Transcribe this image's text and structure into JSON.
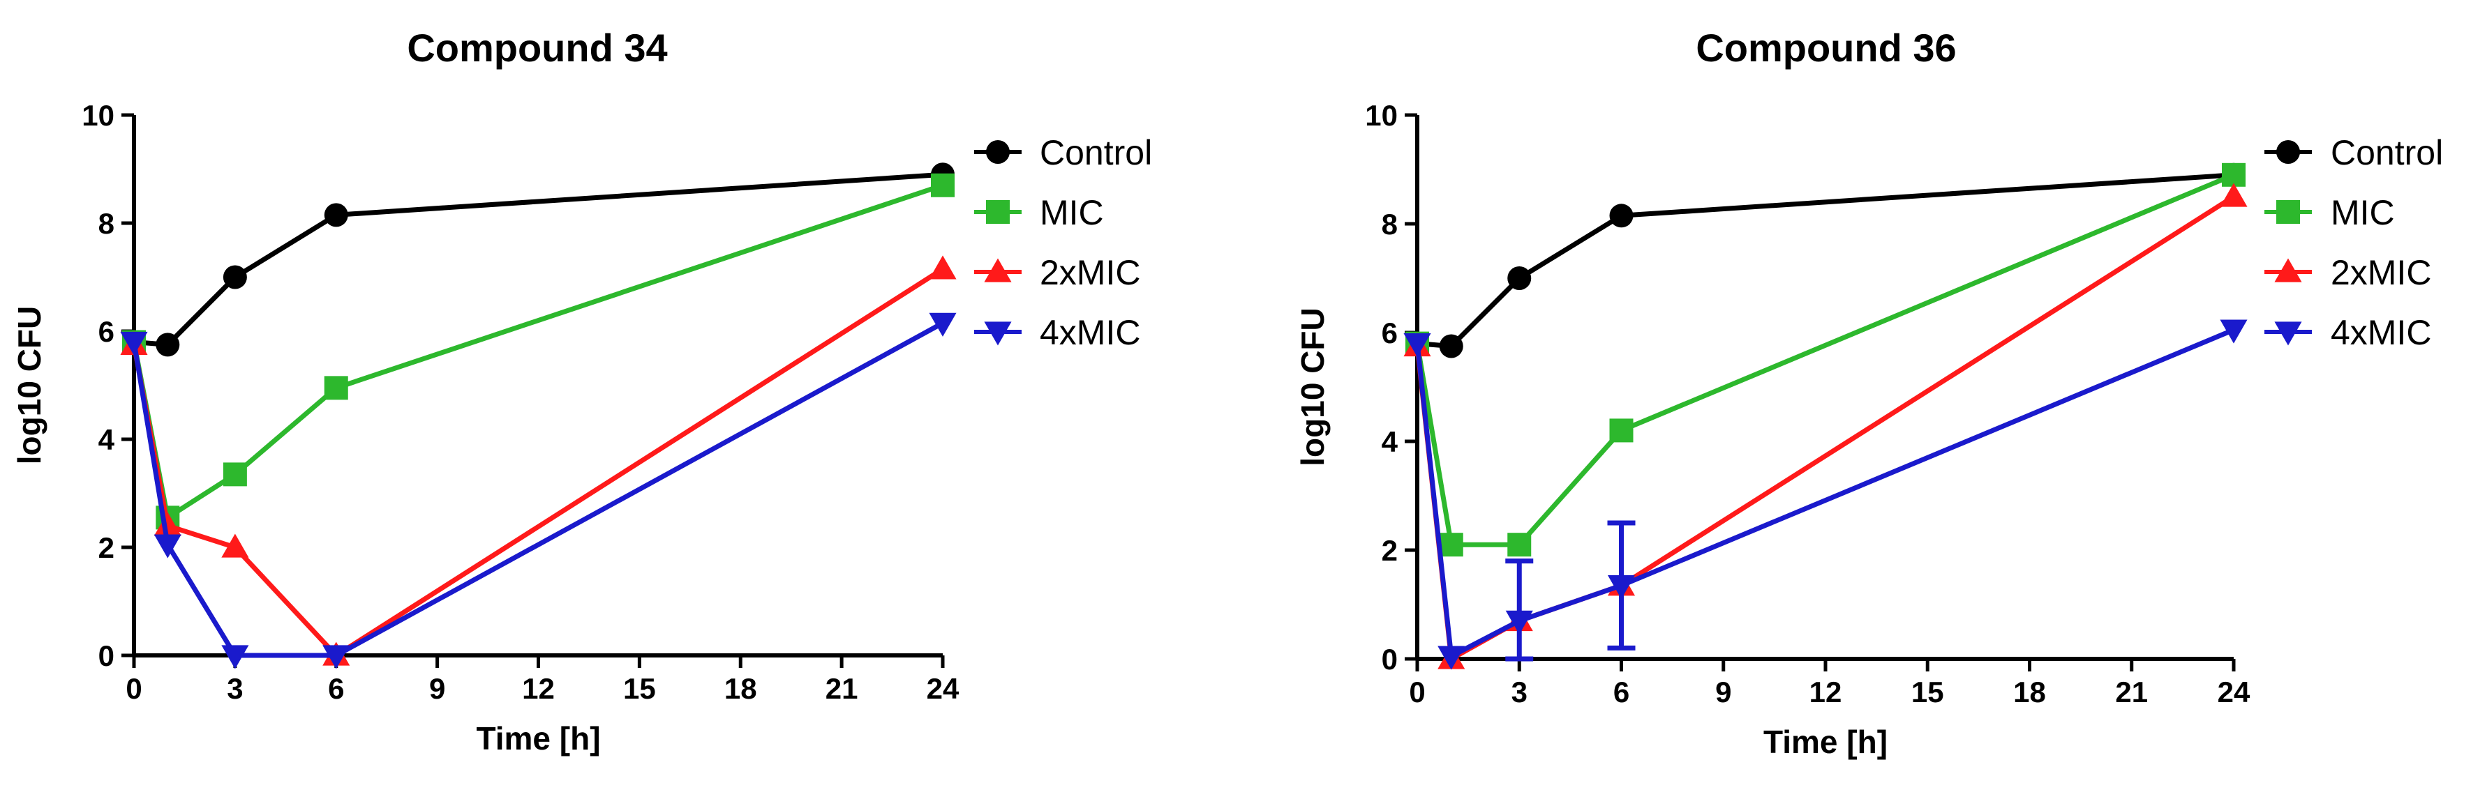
{
  "chart_data": [
    {
      "type": "line",
      "title": "Compound 34",
      "xlabel": "Time [h]",
      "ylabel": "log10 CFU",
      "xlim": [
        0,
        24
      ],
      "ylim": [
        0,
        10
      ],
      "xticks": [
        0,
        3,
        6,
        9,
        12,
        15,
        18,
        21,
        24
      ],
      "yticks": [
        0,
        2,
        4,
        6,
        8,
        10
      ],
      "grid": false,
      "legend_position": "right",
      "series": [
        {
          "name": "Control",
          "color": "#000000",
          "marker": "circle",
          "x": [
            0,
            1,
            3,
            6,
            24
          ],
          "y": [
            5.8,
            5.75,
            7.0,
            8.15,
            8.9
          ]
        },
        {
          "name": "MIC",
          "color": "#2db82d",
          "marker": "square",
          "x": [
            0,
            1,
            3,
            6,
            24
          ],
          "y": [
            5.8,
            2.55,
            3.35,
            4.95,
            8.7
          ]
        },
        {
          "name": "2xMIC",
          "color": "#ff1a1a",
          "marker": "triangle-up",
          "x": [
            0,
            1,
            3,
            6,
            24
          ],
          "y": [
            5.75,
            2.4,
            2.0,
            0.0,
            7.15
          ]
        },
        {
          "name": "4xMIC",
          "color": "#1a1acc",
          "marker": "triangle-down",
          "x": [
            0,
            1,
            3,
            6,
            24
          ],
          "y": [
            5.8,
            2.05,
            0.0,
            0.0,
            6.15
          ]
        }
      ]
    },
    {
      "type": "line",
      "title": "Compound 36",
      "xlabel": "Time [h]",
      "ylabel": "log10 CFU",
      "xlim": [
        0,
        24
      ],
      "ylim": [
        0,
        10
      ],
      "xticks": [
        0,
        3,
        6,
        9,
        12,
        15,
        18,
        21,
        24
      ],
      "yticks": [
        0,
        2,
        4,
        6,
        8,
        10
      ],
      "grid": false,
      "legend_position": "right",
      "series": [
        {
          "name": "Control",
          "color": "#000000",
          "marker": "circle",
          "x": [
            0,
            1,
            3,
            6,
            24
          ],
          "y": [
            5.8,
            5.75,
            7.0,
            8.15,
            8.9
          ]
        },
        {
          "name": "MIC",
          "color": "#2db82d",
          "marker": "square",
          "x": [
            0,
            1,
            3,
            6,
            24
          ],
          "y": [
            5.8,
            2.1,
            2.1,
            4.2,
            8.9
          ]
        },
        {
          "name": "2xMIC",
          "color": "#ff1a1a",
          "marker": "triangle-up",
          "x": [
            0,
            1,
            3,
            6,
            24
          ],
          "y": [
            5.75,
            0.0,
            0.7,
            1.35,
            8.5
          ]
        },
        {
          "name": "4xMIC",
          "color": "#1a1acc",
          "marker": "triangle-down",
          "x": [
            0,
            1,
            3,
            6,
            24
          ],
          "y": [
            5.8,
            0.05,
            0.7,
            1.35,
            6.05
          ],
          "error": [
            null,
            null,
            1.1,
            1.15,
            null
          ]
        }
      ]
    }
  ]
}
